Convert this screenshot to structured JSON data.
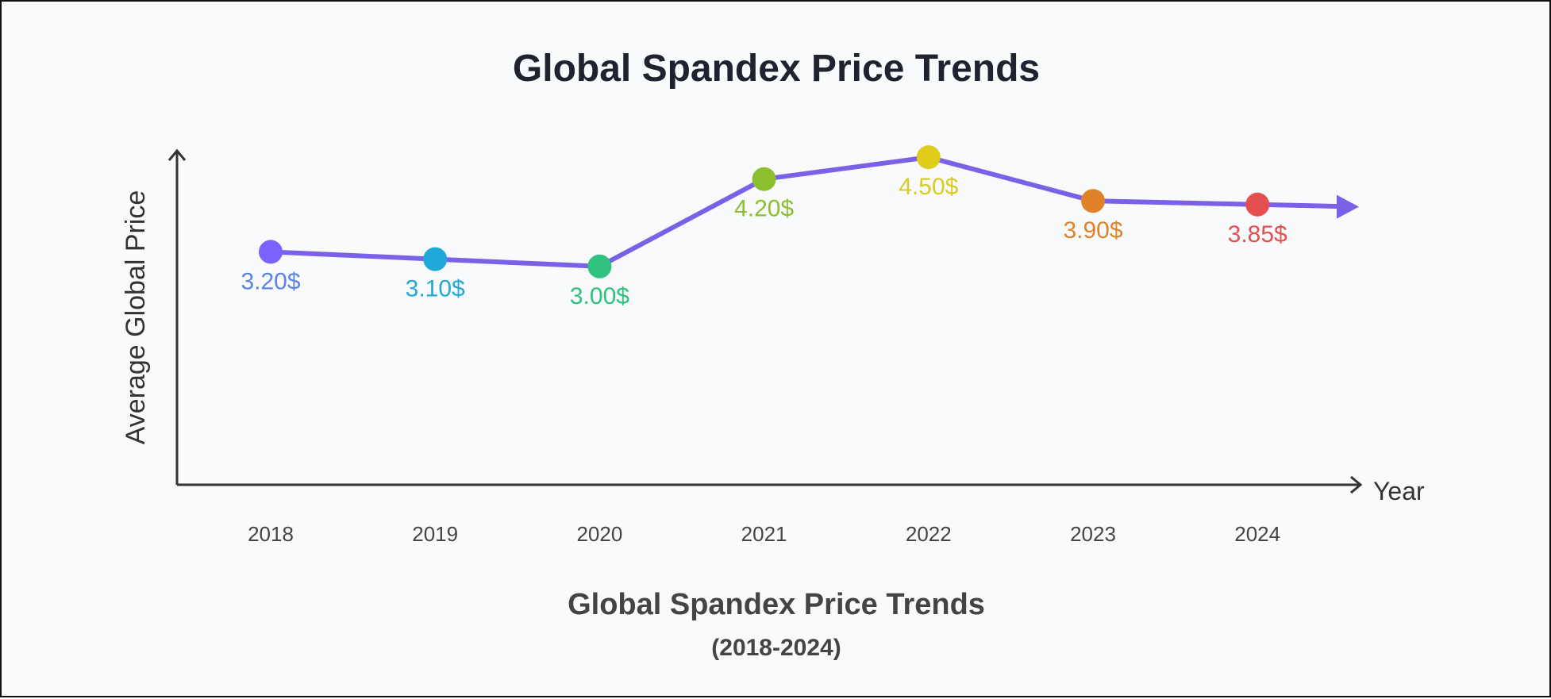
{
  "chart_data": {
    "type": "line",
    "title": "Global Spandex Price Trends",
    "subtitle": "Global Spandex Price Trends",
    "subtitle_range": "(2018-2024)",
    "xlabel": "Year",
    "ylabel": "Average Global Price",
    "categories": [
      "2018",
      "2019",
      "2020",
      "2021",
      "2022",
      "2023",
      "2024"
    ],
    "values": [
      3.2,
      3.1,
      3.0,
      4.2,
      4.5,
      3.9,
      3.85
    ],
    "data_labels": [
      "3.20$",
      "3.10$",
      "3.00$",
      "4.20$",
      "4.50$",
      "3.90$",
      "3.85$"
    ],
    "ylim": [
      0,
      4.6
    ],
    "grid": false,
    "line_color": "#7b61e8",
    "point_colors": [
      "#7b61ff",
      "#1fa8d8",
      "#2ec27e",
      "#8cbf2e",
      "#e0cc1a",
      "#e0822a",
      "#e45050"
    ],
    "label_colors": [
      "#5b83e6",
      "#1fa8d8",
      "#2ec27e",
      "#8cbf2e",
      "#d8cc20",
      "#e0822a",
      "#e45050"
    ]
  }
}
